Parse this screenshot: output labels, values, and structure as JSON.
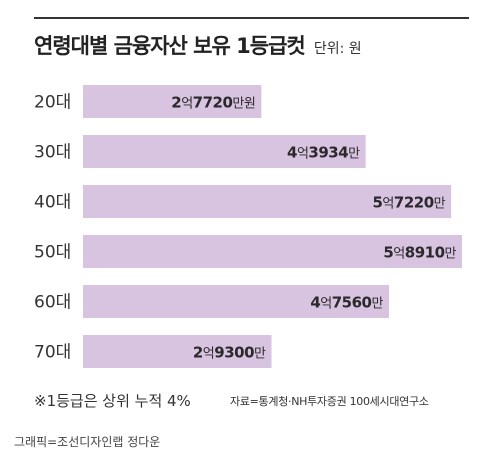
{
  "title": "연령대별 금융자산 보유 1등급컷",
  "unit": "단위: 원",
  "note": "※1등급은 상위 누적 4%",
  "source": "자료=통계청·NH투자증권 100세시대연구소",
  "credit": "그래픽=조선디자인랩 정다운",
  "colors": {
    "bar": "#d8c3e1",
    "rule": "#333333"
  },
  "chart_data": {
    "type": "bar",
    "orientation": "horizontal",
    "categories": [
      "20대",
      "30대",
      "40대",
      "50대",
      "60대",
      "70대"
    ],
    "values": [
      277200000,
      439340000,
      572200000,
      589100000,
      475600000,
      293000000
    ],
    "value_labels": [
      [
        "2",
        "억",
        "7720",
        "만원"
      ],
      [
        "4",
        "억",
        "3934",
        "만"
      ],
      [
        "5",
        "억",
        "7220",
        "만"
      ],
      [
        "5",
        "억",
        "8910",
        "만"
      ],
      [
        "4",
        "억",
        "7560",
        "만"
      ],
      [
        "2",
        "억",
        "9300",
        "만"
      ]
    ],
    "xlim": [
      0,
      600000000
    ]
  }
}
